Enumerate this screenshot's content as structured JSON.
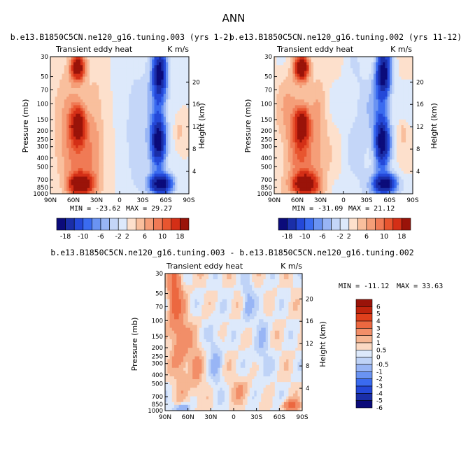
{
  "page_title": "ANN",
  "chart_data": [
    {
      "type": "heatmap",
      "title": "b.e13.B1850C5CN.ne120_g16.tuning.003 (yrs 1-2)",
      "subtitle_left": "Transient eddy heat",
      "subtitle_right": "K m/s",
      "xlabel": "",
      "ylabel": "Pressure (mb)",
      "ylabel_right": "Height (km)",
      "x_ticks": [
        "90N",
        "60N",
        "30N",
        "0",
        "30S",
        "60S",
        "90S"
      ],
      "y_ticks": [
        "30",
        "50",
        "70",
        "100",
        "150",
        "200",
        "250",
        "300",
        "400",
        "500",
        "700",
        "850",
        "1000"
      ],
      "y_ticks_right": [
        "20",
        "16",
        "12",
        "8",
        "4"
      ],
      "ylim_mb": [
        1000,
        30
      ],
      "min_text": "MIN = -23.62",
      "max_text": "MAX =  29.27",
      "min": -23.62,
      "max": 29.27,
      "colorbar_labels": [
        "-18",
        "-10",
        "-6",
        "-2",
        "2",
        "6",
        "10",
        "18"
      ],
      "colorbar_levels": [
        -18,
        -14,
        -10,
        -8,
        -6,
        -4,
        -2,
        0,
        2,
        4,
        6,
        8,
        10,
        14,
        18
      ]
    },
    {
      "type": "heatmap",
      "title": "b.e13.B1850C5CN.ne120_g16.tuning.002 (yrs 11-12)",
      "subtitle_left": "Transient eddy heat",
      "subtitle_right": "K m/s",
      "xlabel": "",
      "ylabel": "Pressure (mb)",
      "ylabel_right": "Height (km)",
      "x_ticks": [
        "90N",
        "60N",
        "30N",
        "0",
        "30S",
        "60S",
        "90S"
      ],
      "y_ticks": [
        "30",
        "50",
        "70",
        "100",
        "150",
        "200",
        "250",
        "300",
        "400",
        "500",
        "700",
        "850",
        "1000"
      ],
      "y_ticks_right": [
        "20",
        "16",
        "12",
        "8",
        "4"
      ],
      "ylim_mb": [
        1000,
        30
      ],
      "min_text": "MIN = -31.09",
      "max_text": "MAX =  21.12",
      "min": -31.09,
      "max": 21.12,
      "colorbar_labels": [
        "-18",
        "-10",
        "-6",
        "-2",
        "2",
        "6",
        "10",
        "18"
      ],
      "colorbar_levels": [
        -18,
        -14,
        -10,
        -8,
        -6,
        -4,
        -2,
        0,
        2,
        4,
        6,
        8,
        10,
        14,
        18
      ]
    },
    {
      "type": "heatmap",
      "title": "b.e13.B1850C5CN.ne120_g16.tuning.003 - b.e13.B1850C5CN.ne120_g16.tuning.002",
      "subtitle_left": "Transient eddy heat",
      "subtitle_right": "K m/s",
      "xlabel": "",
      "ylabel": "Pressure (mb)",
      "ylabel_right": "Height (km)",
      "x_ticks": [
        "90N",
        "60N",
        "30N",
        "0",
        "30S",
        "60S",
        "90S"
      ],
      "y_ticks": [
        "30",
        "50",
        "70",
        "100",
        "150",
        "200",
        "250",
        "300",
        "400",
        "500",
        "700",
        "850",
        "1000"
      ],
      "y_ticks_right": [
        "20",
        "16",
        "12",
        "8",
        "4"
      ],
      "ylim_mb": [
        1000,
        30
      ],
      "min_text": "MIN = -11.12",
      "max_text": "MAX =  33.63",
      "min": -11.12,
      "max": 33.63,
      "colorbar_labels": [
        "6",
        "5",
        "4",
        "3",
        "2",
        "1",
        "0.5",
        "0",
        "-0.5",
        "-1",
        "-2",
        "-3",
        "-4",
        "-5",
        "-6"
      ],
      "colorbar_levels": [
        6,
        5,
        4,
        3,
        2,
        1,
        0.5,
        0,
        -0.5,
        -1,
        -2,
        -3,
        -4,
        -5,
        -6
      ]
    }
  ],
  "colors": {
    "abs_scale": [
      "#0b0b7a",
      "#1a2ea8",
      "#2448d8",
      "#3a6bf0",
      "#6a93f2",
      "#98b5f5",
      "#c4d6f8",
      "#dde9fb",
      "#fde0cc",
      "#f9bf9d",
      "#f59e78",
      "#f07a55",
      "#e8552f",
      "#d42f16",
      "#9a1309"
    ],
    "diff_scale": [
      "#9a1309",
      "#c0240d",
      "#e0401c",
      "#ec6840",
      "#f28e68",
      "#f6b693",
      "#fbd9c3",
      "#dde9fb",
      "#bfd3f7",
      "#98b5f5",
      "#6a93f2",
      "#3a6bf0",
      "#2448d8",
      "#1a2ea8",
      "#0b0b7a"
    ]
  }
}
